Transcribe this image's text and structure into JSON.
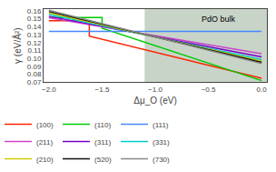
{
  "chart_data": {
    "type": "line",
    "xlabel": "Δμ_O (eV)",
    "ylabel": "γ (eV/Å²)",
    "annotations": [
      {
        "text": "PdO bulk",
        "x": -0.58,
        "y": 0.1575
      }
    ],
    "xlim": [
      -2.05,
      0.05
    ],
    "ylim": [
      0.07,
      0.162
    ],
    "xticks": [
      {
        "value": -2.0,
        "label": "−2.0"
      },
      {
        "value": -1.5,
        "label": "−1.5"
      },
      {
        "value": -1.0,
        "label": "−1.0"
      },
      {
        "value": -0.5,
        "label": "−0.5"
      },
      {
        "value": 0.0,
        "label": "0.0"
      }
    ],
    "yticks": [
      0.07,
      0.08,
      0.09,
      {
        "value": 0.1,
        "label": "0.10"
      },
      0.11,
      0.12,
      0.13,
      0.14,
      0.15,
      0.16
    ],
    "span": {
      "from": -1.1,
      "to": 0.05,
      "color": "#c8d4c8"
    },
    "grid": false,
    "legend": "bottom",
    "series": [
      {
        "name": "(100)",
        "color": "#ff2200",
        "x": [
          -2.0,
          -1.62,
          -1.62,
          0.0
        ],
        "values": [
          0.1475,
          0.1475,
          0.128,
          0.075
        ]
      },
      {
        "name": "(110)",
        "color": "#00cc00",
        "x": [
          -2.0,
          -1.5,
          -1.5,
          0.0
        ],
        "values": [
          0.1515,
          0.1515,
          0.138,
          0.072
        ]
      },
      {
        "name": "(111)",
        "color": "#4488ff",
        "x": [
          -2.0,
          0.0
        ],
        "values": [
          0.134,
          0.134
        ]
      },
      {
        "name": "(211)",
        "color": "#cc44cc",
        "x": [
          -2.0,
          0.0
        ],
        "values": [
          0.151,
          0.106
        ]
      },
      {
        "name": "(311)",
        "color": "#7700cc",
        "x": [
          -2.0,
          0.0
        ],
        "values": [
          0.153,
          0.102
        ]
      },
      {
        "name": "(331)",
        "color": "#00cccc",
        "x": [
          -2.0,
          0.0
        ],
        "values": [
          0.1555,
          0.0985
        ]
      },
      {
        "name": "(210)",
        "color": "#cccc00",
        "x": [
          -2.0,
          0.0
        ],
        "values": [
          0.1575,
          0.0965
        ]
      },
      {
        "name": "(520)",
        "color": "#111111",
        "x": [
          -2.0,
          0.0
        ],
        "values": [
          0.159,
          0.095
        ]
      },
      {
        "name": "(730)",
        "color": "#888888",
        "x": [
          -2.0,
          0.0
        ],
        "values": [
          0.1605,
          0.0935
        ]
      }
    ]
  }
}
